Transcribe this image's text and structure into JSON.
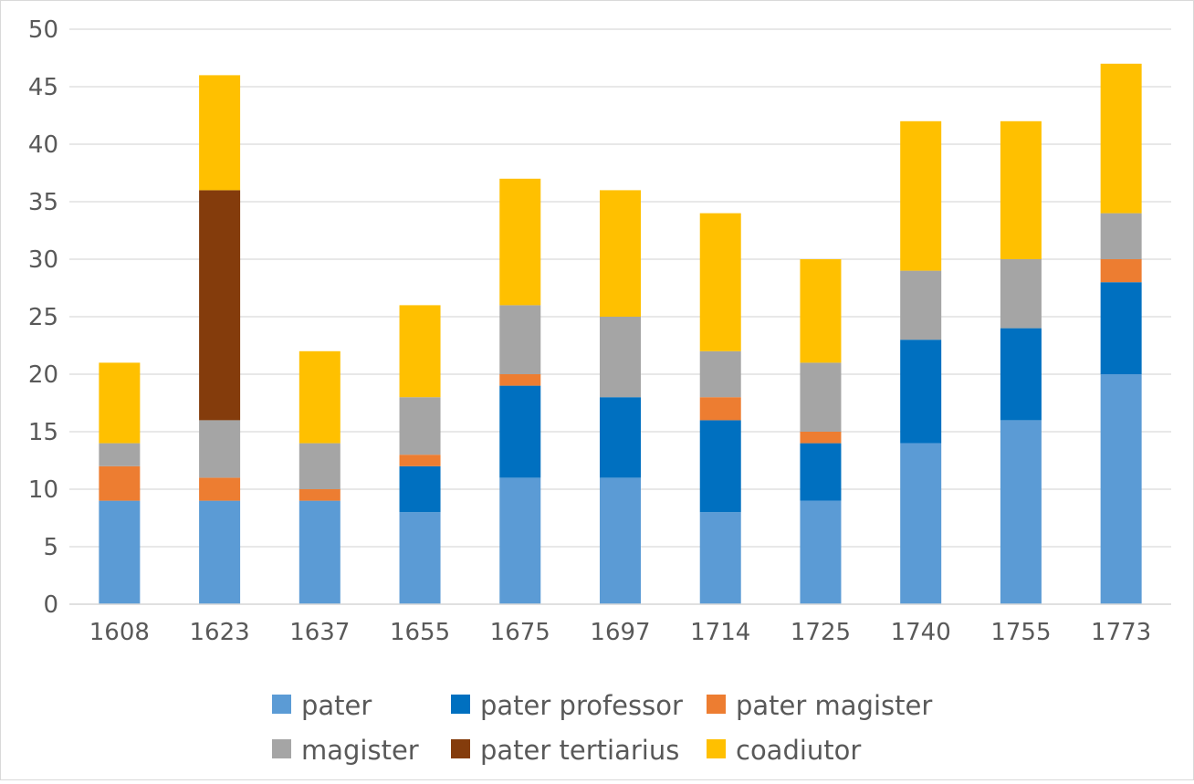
{
  "chart_data": {
    "type": "bar",
    "stacked": true,
    "title": "",
    "xlabel": "",
    "ylabel": "",
    "ylim": [
      0,
      50
    ],
    "yticks": [
      0,
      5,
      10,
      15,
      20,
      25,
      30,
      35,
      40,
      45,
      50
    ],
    "grid": true,
    "legend_position": "bottom",
    "categories": [
      "1608",
      "1623",
      "1637",
      "1655",
      "1675",
      "1697",
      "1714",
      "1725",
      "1740",
      "1755",
      "1773"
    ],
    "series": [
      {
        "name": "pater",
        "color": "#5b9bd5",
        "values": [
          9,
          9,
          9,
          8,
          11,
          11,
          8,
          9,
          14,
          16,
          20
        ]
      },
      {
        "name": "pater professor",
        "color": "#0070c0",
        "values": [
          0,
          0,
          0,
          4,
          8,
          7,
          8,
          5,
          9,
          8,
          8
        ]
      },
      {
        "name": "pater magister",
        "color": "#ed7d31",
        "values": [
          3,
          2,
          1,
          1,
          1,
          0,
          2,
          1,
          0,
          0,
          2
        ]
      },
      {
        "name": "magister",
        "color": "#a5a5a5",
        "values": [
          2,
          5,
          4,
          5,
          6,
          7,
          4,
          6,
          6,
          6,
          4
        ]
      },
      {
        "name": "pater tertiarius",
        "color": "#843c0c",
        "values": [
          0,
          20,
          0,
          0,
          0,
          0,
          0,
          0,
          0,
          0,
          0
        ]
      },
      {
        "name": "coadiutor",
        "color": "#ffc000",
        "values": [
          7,
          10,
          8,
          8,
          11,
          11,
          12,
          9,
          13,
          12,
          13
        ]
      }
    ]
  }
}
